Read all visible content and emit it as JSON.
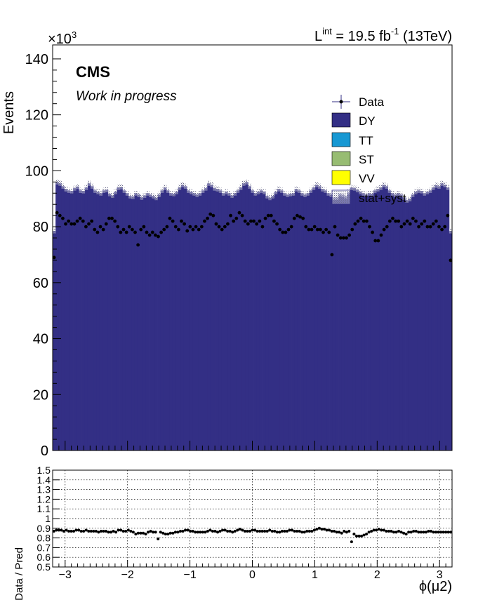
{
  "header": {
    "lumi_label": "L",
    "lumi_sup": "int",
    "lumi_eq": " = 19.5 fb",
    "lumi_exp": "-1",
    "lumi_energy": " (13TeV)",
    "cms_label": "CMS",
    "status_label": "Work in progress"
  },
  "colors": {
    "dy": "#332f85",
    "tt": "#1798d3",
    "st": "#97bc72",
    "vv": "#ffff00",
    "unc": "#7a7a9a",
    "data": "#000000"
  },
  "chart_data": [
    {
      "type": "bar",
      "ylabel": "Events",
      "yscale_label": "×10",
      "yscale_exp": "3",
      "xlim": [
        -3.2,
        3.2
      ],
      "ylim": [
        0,
        145
      ],
      "y_ticks": [
        0,
        20,
        40,
        60,
        80,
        100,
        120,
        140
      ],
      "y_tick_labels": [
        "0",
        "20",
        "40",
        "60",
        "80",
        "100",
        "120",
        "140"
      ],
      "legend": {
        "position": "top-right",
        "entries": [
          "Data",
          "DY",
          "TT",
          "ST",
          "VV",
          "stat+syst"
        ]
      },
      "series": [
        {
          "name": "DY",
          "values": [
            78.5,
            96.0,
            95.5,
            94.5,
            93.5,
            93.0,
            92.8,
            93.8,
            94.4,
            93.0,
            92.8,
            94.0,
            95.5,
            94.5,
            93.0,
            92.5,
            92.0,
            93.0,
            93.2,
            91.8,
            91.2,
            92.5,
            94.0,
            94.2,
            93.0,
            92.0,
            91.0,
            90.8,
            92.0,
            91.5,
            90.5,
            91.2,
            92.0,
            91.5,
            91.0,
            90.4,
            91.5,
            93.0,
            94.0,
            93.0,
            92.0,
            91.8,
            92.5,
            94.0,
            95.0,
            94.5,
            93.0,
            92.5,
            92.0,
            91.5,
            92.0,
            93.0,
            93.8,
            95.5,
            95.0,
            93.8,
            93.5,
            93.0,
            92.0,
            92.5,
            92.0,
            91.2,
            92.0,
            93.0,
            94.0,
            95.5,
            96.0,
            94.5,
            93.0,
            92.0,
            92.5,
            93.0,
            92.5,
            91.0,
            90.4,
            91.0,
            92.5,
            93.5,
            93.0,
            92.0,
            91.5,
            91.8,
            92.0,
            93.5,
            93.0,
            92.0,
            91.5,
            92.0,
            93.0,
            94.0,
            95.0,
            94.5,
            93.5,
            93.0,
            92.0,
            91.5,
            90.5,
            90.5,
            91.8,
            91.5,
            91.0,
            92.5,
            94.0,
            93.8,
            93.2,
            92.5,
            92.0,
            91.5,
            92.0,
            91.8,
            93.0,
            93.5,
            94.0,
            95.0,
            94.5,
            93.0,
            92.0,
            91.5,
            92.0,
            91.5,
            90.5,
            89.5,
            90.0,
            91.5,
            92.5,
            93.0,
            92.8,
            92.0,
            92.5,
            93.0,
            94.0,
            94.8,
            94.5,
            95.5,
            95.0,
            94.0,
            78.5
          ]
        }
      ],
      "data_points": {
        "name": "Data",
        "values": [
          69.0,
          85.0,
          84.0,
          83.0,
          81.0,
          82.0,
          81.0,
          81.0,
          82.0,
          83.0,
          82.0,
          80.0,
          81.0,
          82.0,
          79.0,
          78.0,
          80.0,
          79.0,
          81.0,
          83.0,
          83.0,
          82.0,
          80.0,
          78.0,
          79.0,
          78.0,
          80.0,
          79.0,
          78.0,
          73.5,
          79.0,
          80.0,
          78.0,
          77.0,
          78.0,
          77.0,
          76.5,
          78.0,
          79.0,
          80.0,
          83.0,
          82.0,
          80.0,
          79.0,
          82.0,
          81.0,
          78.5,
          80.0,
          79.0,
          80.0,
          79.0,
          80.0,
          82.0,
          83.0,
          84.5,
          84.0,
          81.0,
          80.0,
          79.0,
          80.0,
          81.0,
          84.0,
          82.0,
          83.0,
          85.0,
          84.0,
          82.0,
          81.0,
          82.0,
          82.0,
          81.0,
          82.0,
          80.0,
          83.0,
          84.0,
          84.0,
          82.0,
          81.0,
          79.0,
          78.0,
          78.0,
          79.0,
          80.0,
          83.0,
          84.0,
          83.5,
          83.0,
          80.0,
          79.0,
          79.0,
          80.0,
          79.0,
          79.0,
          78.0,
          79.0,
          78.0,
          70.0,
          80.0,
          77.0,
          76.0,
          76.0,
          76.0,
          77.0,
          79.0,
          81.0,
          82.0,
          83.0,
          82.0,
          82.0,
          80.0,
          78.0,
          75.0,
          75.0,
          77.0,
          79.0,
          80.0,
          82.0,
          83.0,
          82.0,
          82.0,
          80.0,
          81.0,
          82.0,
          81.0,
          83.0,
          82.0,
          80.0,
          81.0,
          82.0,
          80.0,
          80.0,
          81.0,
          82.0,
          80.0,
          79.0,
          80.0,
          84.0,
          68.0
        ]
      }
    },
    {
      "type": "scatter",
      "xlabel": "ϕ(μ2)",
      "ylabel": "Data / Pred",
      "xlim": [
        -3.2,
        3.2
      ],
      "ylim": [
        0.5,
        1.5
      ],
      "x_ticks": [
        -3,
        -2,
        -1,
        0,
        1,
        2,
        3
      ],
      "x_tick_labels": [
        "−3",
        "−2",
        "−1",
        "0",
        "1",
        "2",
        "3"
      ],
      "y_ticks": [
        0.5,
        0.6,
        0.7,
        0.8,
        0.9,
        1,
        1.1,
        1.2,
        1.3,
        1.4,
        1.5
      ],
      "y_tick_labels": [
        "0.5",
        "0.6",
        "0.7",
        "0.8",
        "0.9",
        "1",
        "1.1",
        "1.2",
        "1.3",
        "1.4",
        "1.5"
      ],
      "grid": true,
      "series": [
        {
          "values": [
            0.87,
            0.88,
            0.88,
            0.88,
            0.87,
            0.88,
            0.87,
            0.87,
            0.87,
            0.88,
            0.88,
            0.87,
            0.87,
            0.88,
            0.87,
            0.87,
            0.87,
            0.87,
            0.86,
            0.87,
            0.87,
            0.87,
            0.86,
            0.86,
            0.87,
            0.86,
            0.88,
            0.88,
            0.87,
            0.87,
            0.88,
            0.87,
            0.86,
            0.84,
            0.85,
            0.85,
            0.85,
            0.84,
            0.86,
            0.87,
            0.86,
            0.86,
            0.79,
            0.86,
            0.85,
            0.84,
            0.84,
            0.85,
            0.85,
            0.86,
            0.86,
            0.87,
            0.87,
            0.88,
            0.88,
            0.87,
            0.87,
            0.86,
            0.86,
            0.86,
            0.86,
            0.86,
            0.87,
            0.88,
            0.87,
            0.87,
            0.86,
            0.87,
            0.88,
            0.88,
            0.87,
            0.87,
            0.86,
            0.87,
            0.88,
            0.89,
            0.88,
            0.87,
            0.87,
            0.87,
            0.88,
            0.88,
            0.87,
            0.87,
            0.87,
            0.87,
            0.87,
            0.88,
            0.87,
            0.87,
            0.86,
            0.86,
            0.87,
            0.87,
            0.87,
            0.88,
            0.88,
            0.87,
            0.87,
            0.87,
            0.86,
            0.86,
            0.87,
            0.87,
            0.87,
            0.88,
            0.89,
            0.9,
            0.89,
            0.89,
            0.88,
            0.88,
            0.87,
            0.87,
            0.86,
            0.86,
            0.85,
            0.87,
            0.86,
            0.87,
            0.76,
            0.84,
            0.82,
            0.82,
            0.82,
            0.83,
            0.84,
            0.86,
            0.87,
            0.88,
            0.88,
            0.89,
            0.88,
            0.88,
            0.87,
            0.87,
            0.87,
            0.86,
            0.86,
            0.87,
            0.86,
            0.85,
            0.84,
            0.86,
            0.86,
            0.87,
            0.87,
            0.86,
            0.86,
            0.86,
            0.86,
            0.87,
            0.87,
            0.86,
            0.86,
            0.86,
            0.86,
            0.86,
            0.86,
            0.86,
            0.86
          ]
        }
      ]
    }
  ]
}
